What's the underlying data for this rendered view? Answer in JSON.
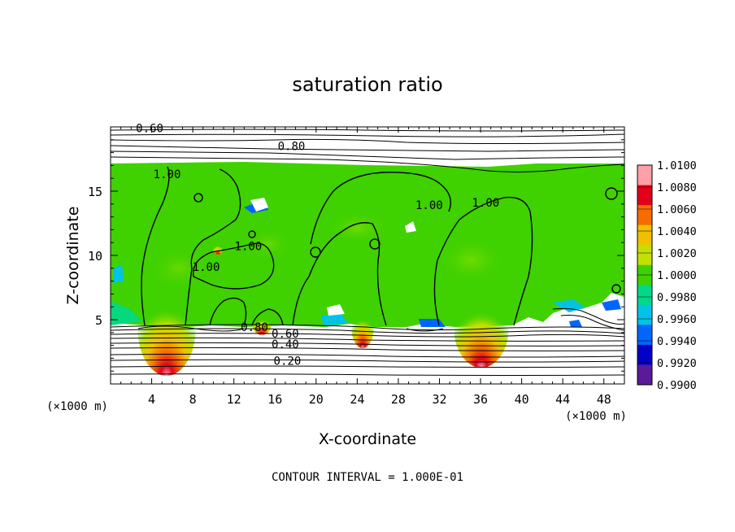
{
  "chart_data": {
    "type": "heatmap",
    "title": "saturation ratio",
    "xlabel": "X-coordinate",
    "ylabel": "Z-coordinate",
    "x_unit": "(×1000 m)",
    "x_unit_right": "(×1000 m)",
    "xlim": [
      0,
      50
    ],
    "ylim": [
      0,
      20
    ],
    "x_ticks": [
      "4",
      "8",
      "12",
      "16",
      "20",
      "24",
      "28",
      "32",
      "36",
      "40",
      "44",
      "48"
    ],
    "x_tick_values": [
      4,
      8,
      12,
      16,
      20,
      24,
      28,
      32,
      36,
      40,
      44,
      48
    ],
    "y_ticks": [
      "5",
      "10",
      "15"
    ],
    "y_tick_values": [
      5,
      10,
      15
    ],
    "footer": "CONTOUR INTERVAL = 1.000E-01",
    "colorbar": {
      "labels": [
        "1.0100",
        "1.0080",
        "1.0060",
        "1.0040",
        "1.0020",
        "1.0000",
        "0.9980",
        "0.9960",
        "0.9940",
        "0.9920",
        "0.9900"
      ],
      "colors": [
        "#ff9fa8",
        "#e3001a",
        "#f56d00",
        "#f0c000",
        "#c4e000",
        "#3fd100",
        "#00d98a",
        "#00c3e6",
        "#0066ff",
        "#0000c8",
        "#5a1a9a"
      ]
    },
    "contour_labels": [
      {
        "text": "0.60",
        "x": 3.8,
        "z": 19.6
      },
      {
        "text": "0.80",
        "x": 17.6,
        "z": 18.2
      },
      {
        "text": "1.00",
        "x": 5.5,
        "z": 16.0
      },
      {
        "text": "1.00",
        "x": 31.0,
        "z": 13.6
      },
      {
        "text": "1.00",
        "x": 36.5,
        "z": 13.8
      },
      {
        "text": "1.00",
        "x": 9.3,
        "z": 8.8
      },
      {
        "text": "1.00",
        "x": 13.4,
        "z": 10.4
      },
      {
        "text": "0.80",
        "x": 14.0,
        "z": 4.1
      },
      {
        "text": "0.60",
        "x": 17.0,
        "z": 3.6
      },
      {
        "text": "0.40",
        "x": 17.0,
        "z": 2.8
      },
      {
        "text": "0.20",
        "x": 17.2,
        "z": 1.5
      }
    ],
    "field_description_values": {
      "supersaturated_peaks_x": [
        5.5,
        24.5,
        36.0
      ],
      "peak_value": 1.008,
      "background_value": 1.0,
      "cloud_top_z": 17.2,
      "cloud_base_z": 4.6
    }
  }
}
